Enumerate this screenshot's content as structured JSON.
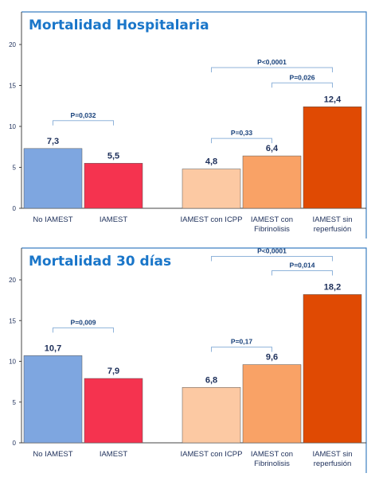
{
  "colors": {
    "frame": "#3c7fc2",
    "title": "#1a76c9",
    "text": "#1d2f5a",
    "axis": "#444444",
    "bracket": "#8fb3da",
    "pvalue": "#17407a"
  },
  "chart_data": [
    {
      "type": "bar",
      "title": "Mortalidad Hospitalaria",
      "ylim": [
        0,
        20
      ],
      "yticks": [
        "0",
        "5",
        "10",
        "15",
        "20"
      ],
      "categories": [
        "No IAMEST",
        "IAMEST",
        "IAMEST con ICPP",
        "IAMEST con Fibrinolisis",
        "IAMEST sin reperfusión"
      ],
      "category_lines": [
        [
          "No IAMEST"
        ],
        [
          "IAMEST"
        ],
        [
          "IAMEST con ICPP"
        ],
        [
          "IAMEST con",
          "Fibrinolisis"
        ],
        [
          "IAMEST sin",
          "reperfusión"
        ]
      ],
      "values": [
        7.3,
        5.5,
        4.8,
        6.4,
        12.4
      ],
      "value_labels": [
        "7,3",
        "5,5",
        "4,8",
        "6,4",
        "12,4"
      ],
      "bar_colors": [
        "#7ea6e0",
        "#f5334f",
        "#fcc9a3",
        "#f9a266",
        "#e04a03"
      ],
      "comparisons": [
        {
          "from": 0,
          "to": 1,
          "label": "P=0,032"
        },
        {
          "from": 2,
          "to": 3,
          "label": "P=0,33"
        },
        {
          "from": 3,
          "to": 4,
          "label": "P=0,026"
        },
        {
          "from": 2,
          "to": 4,
          "label": "P<0,0001"
        }
      ]
    },
    {
      "type": "bar",
      "title": "Mortalidad 30 días",
      "ylim": [
        0,
        20
      ],
      "yticks": [
        "0",
        "5",
        "10",
        "15",
        "20"
      ],
      "categories": [
        "No IAMEST",
        "IAMEST",
        "IAMEST con ICPP",
        "IAMEST con Fibrinolisis",
        "IAMEST sin reperfusión"
      ],
      "category_lines": [
        [
          "No IAMEST"
        ],
        [
          "IAMEST"
        ],
        [
          "IAMEST con ICPP"
        ],
        [
          "IAMEST con",
          "Fibrinolisis"
        ],
        [
          "IAMEST sin",
          "reperfusión"
        ]
      ],
      "values": [
        10.7,
        7.9,
        6.8,
        9.6,
        18.2
      ],
      "value_labels": [
        "10,7",
        "7,9",
        "6,8",
        "9,6",
        "18,2"
      ],
      "bar_colors": [
        "#7ea6e0",
        "#f5334f",
        "#fcc9a3",
        "#f9a266",
        "#e04a03"
      ],
      "comparisons": [
        {
          "from": 0,
          "to": 1,
          "label": "P=0,009"
        },
        {
          "from": 2,
          "to": 3,
          "label": "P=0,17"
        },
        {
          "from": 3,
          "to": 4,
          "label": "P=0,014"
        },
        {
          "from": 2,
          "to": 4,
          "label": "P<0,0001"
        }
      ]
    }
  ]
}
